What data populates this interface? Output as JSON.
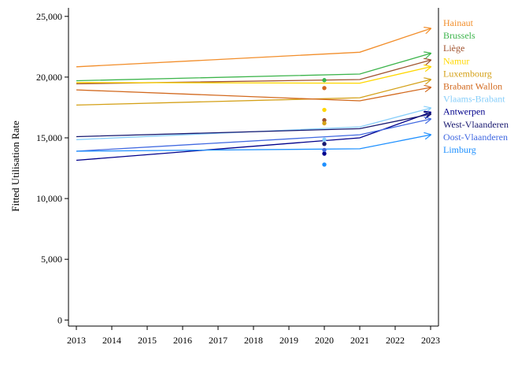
{
  "chart_data": {
    "type": "line",
    "title": "",
    "xlabel": "",
    "ylabel": "Fitted Utilisation Rate",
    "x_ticks": [
      2013,
      2014,
      2015,
      2016,
      2017,
      2018,
      2019,
      2020,
      2021,
      2022,
      2023
    ],
    "xlim": [
      2013,
      2023
    ],
    "y_ticks": [
      0,
      5000,
      10000,
      15000,
      20000,
      25000
    ],
    "y_tick_labels": [
      "0",
      "5,000",
      "10,000",
      "15,000",
      "20,000",
      "25,000"
    ],
    "ylim": [
      -500,
      25700
    ],
    "grid": false,
    "legend_placement": "right, labels at line ends",
    "x": [
      2013,
      2021,
      2023
    ],
    "series": [
      {
        "name": "Hainaut",
        "color": "#f28e2b",
        "values": [
          20850,
          22050,
          24000
        ],
        "observed_2020": null
      },
      {
        "name": "Brussels",
        "color": "#3cb44b",
        "values": [
          19700,
          20250,
          21950
        ],
        "observed_2020": 19750
      },
      {
        "name": "Liège",
        "color": "#a0522d",
        "values": [
          19450,
          19800,
          21400
        ],
        "observed_2020": 16450
      },
      {
        "name": "Namur",
        "color": "#ffd700",
        "values": [
          19550,
          19500,
          20850
        ],
        "observed_2020": 17300
      },
      {
        "name": "Luxembourg",
        "color": "#d4a017",
        "values": [
          17700,
          18300,
          19800
        ],
        "observed_2020": 16200
      },
      {
        "name": "Brabant Wallon",
        "color": "#d2691e",
        "values": [
          18950,
          18050,
          19150
        ],
        "observed_2020": 19100
      },
      {
        "name": "Vlaams-Brabant",
        "color": "#87cefa",
        "values": [
          14850,
          15900,
          17450
        ],
        "observed_2020": 14850
      },
      {
        "name": "Antwerpen",
        "color": "#00008b",
        "values": [
          13150,
          15000,
          17100
        ],
        "observed_2020": 13700
      },
      {
        "name": "West-Vlaanderen",
        "color": "#191970",
        "values": [
          15100,
          15750,
          16950
        ],
        "observed_2020": 14500
      },
      {
        "name": "Oost-Vlaanderen",
        "color": "#4169e1",
        "values": [
          13900,
          15250,
          16550
        ],
        "observed_2020": 14000
      },
      {
        "name": "Limburg",
        "color": "#1e90ff",
        "values": [
          13900,
          14100,
          15250
        ],
        "observed_2020": 12800
      }
    ]
  }
}
